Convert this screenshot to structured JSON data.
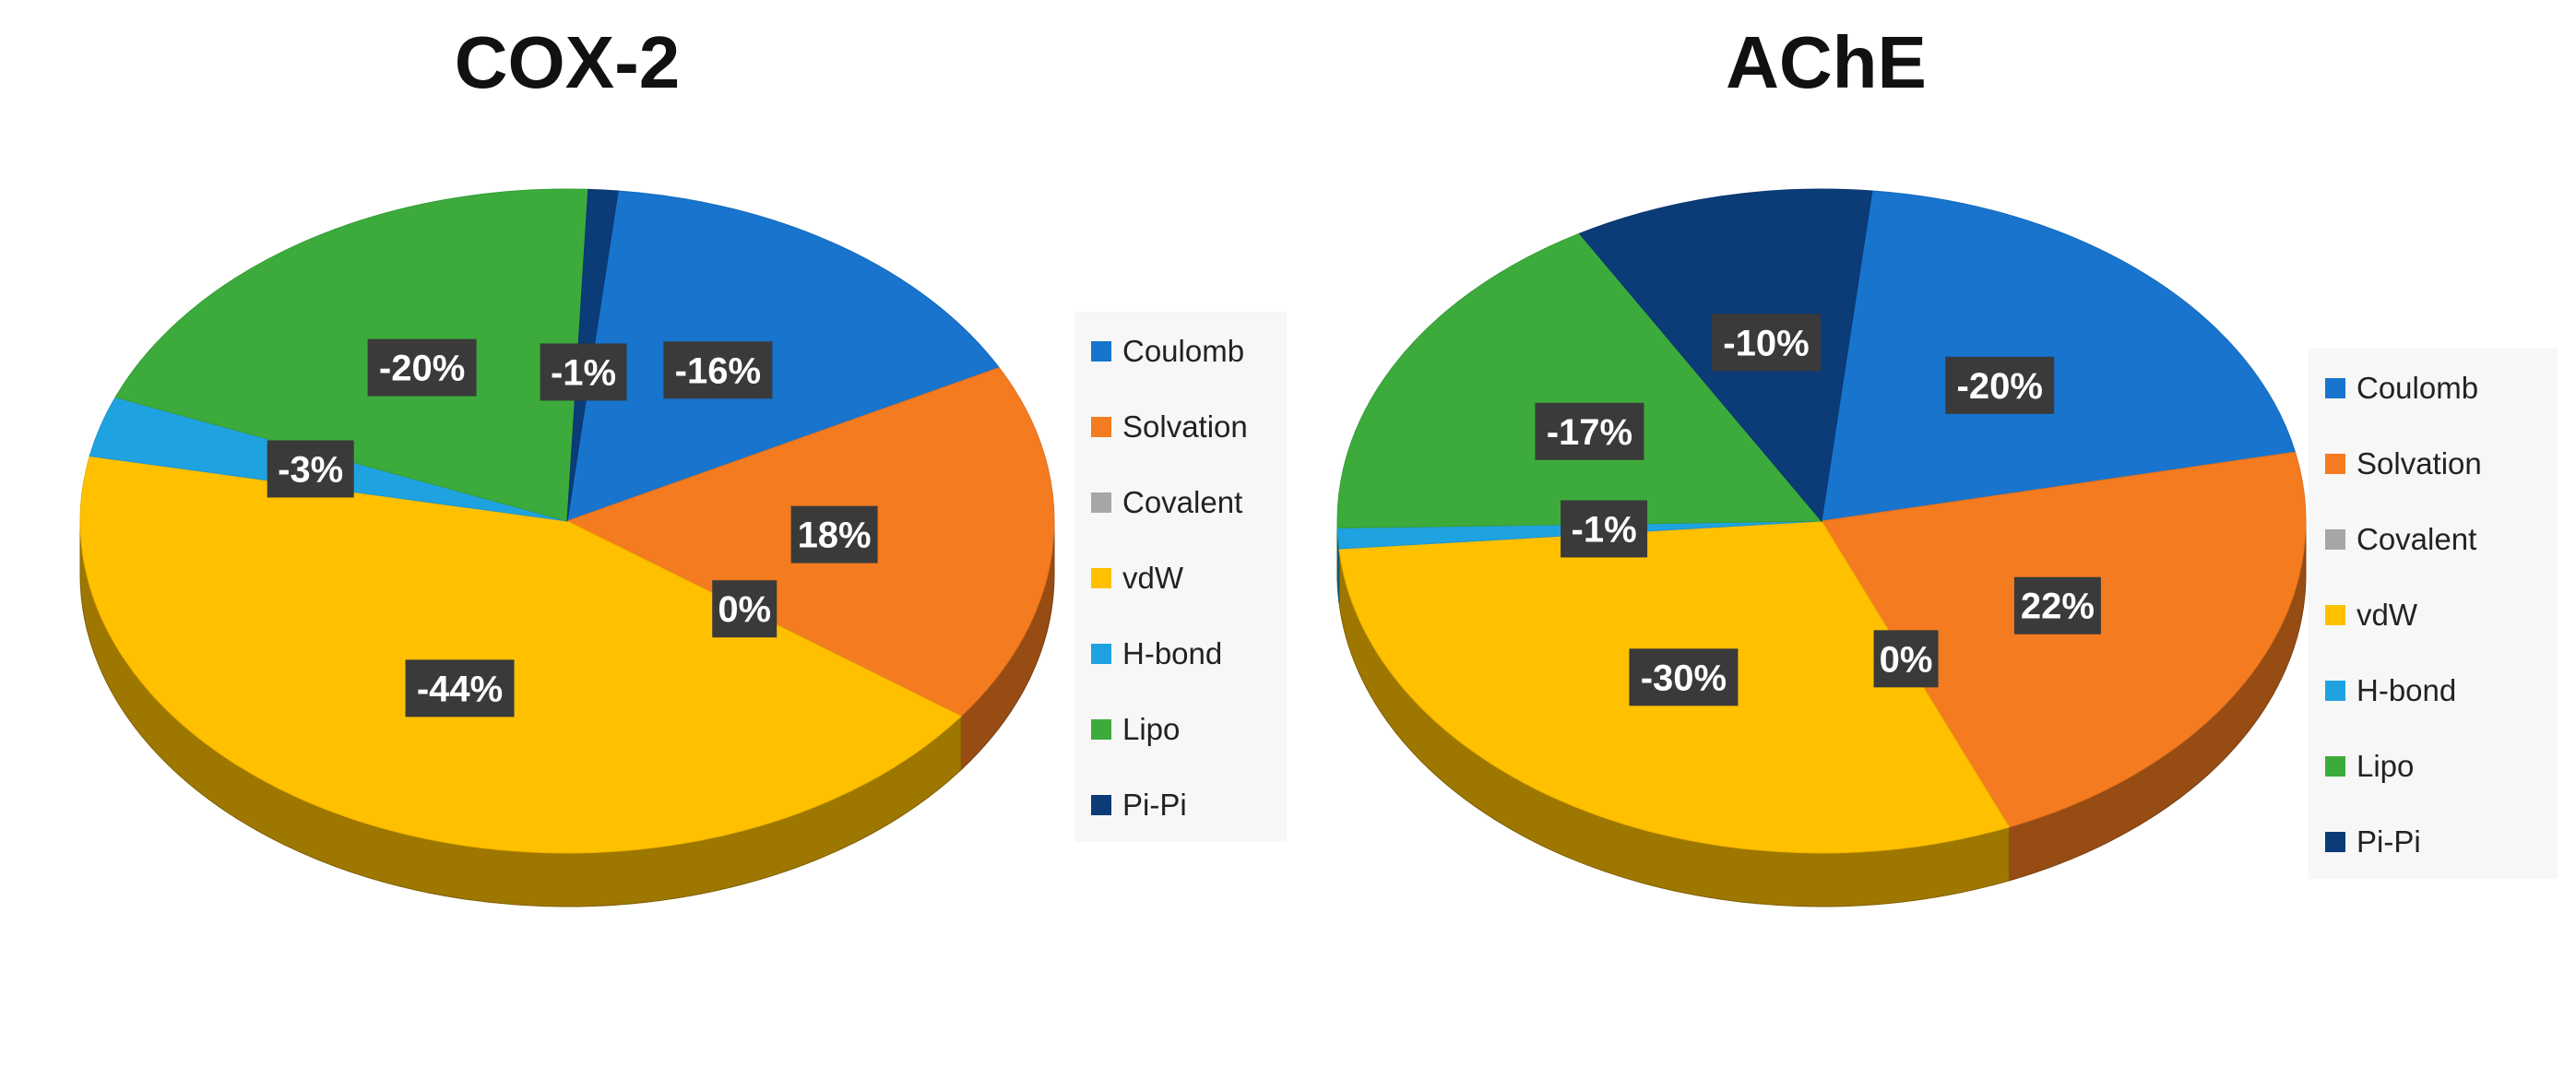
{
  "chart_data": [
    {
      "type": "pie",
      "title": "COX-2",
      "slices": [
        {
          "name": "Coulomb",
          "value": -16,
          "label": "-16%",
          "color": "#1874CD"
        },
        {
          "name": "Solvation",
          "value": 18,
          "label": "18%",
          "color": "#F47B20"
        },
        {
          "name": "Covalent",
          "value": 0,
          "label": "0%",
          "color": "#A6A6A6"
        },
        {
          "name": "vdW",
          "value": -44,
          "label": "-44%",
          "color": "#FFC000"
        },
        {
          "name": "H-bond",
          "value": -3,
          "label": "-3%",
          "color": "#1FA3E0"
        },
        {
          "name": "Lipo",
          "value": -20,
          "label": "-20%",
          "color": "#3CAB3C"
        },
        {
          "name": "Pi-Pi",
          "value": -1,
          "label": "-1%",
          "color": "#0B3C78"
        }
      ],
      "legend": [
        "Coulomb",
        "Solvation",
        "Covalent",
        "vdW",
        "H-bond",
        "Lipo",
        "Pi-Pi"
      ],
      "legend_position": "right"
    },
    {
      "type": "pie",
      "title": "AChE",
      "slices": [
        {
          "name": "Coulomb",
          "value": -20,
          "label": "-20%",
          "color": "#1874CD"
        },
        {
          "name": "Solvation",
          "value": 22,
          "label": "22%",
          "color": "#F47B20"
        },
        {
          "name": "Covalent",
          "value": 0,
          "label": "0%",
          "color": "#A6A6A6"
        },
        {
          "name": "vdW",
          "value": -30,
          "label": "-30%",
          "color": "#FFC000"
        },
        {
          "name": "H-bond",
          "value": -1,
          "label": "-1%",
          "color": "#1FA3E0"
        },
        {
          "name": "Lipo",
          "value": -17,
          "label": "-17%",
          "color": "#3CAB3C"
        },
        {
          "name": "Pi-Pi",
          "value": -10,
          "label": "-10%",
          "color": "#0B3C78"
        }
      ],
      "legend": [
        "Coulomb",
        "Solvation",
        "Covalent",
        "vdW",
        "H-bond",
        "Lipo",
        "Pi-Pi"
      ],
      "legend_position": "right"
    }
  ]
}
